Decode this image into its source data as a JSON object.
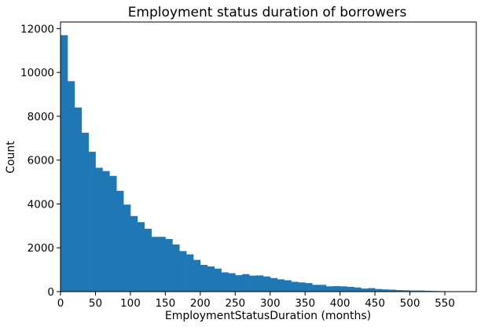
{
  "chart_data": {
    "type": "bar",
    "title": "Employment status duration of borrowers",
    "xlabel": "EmploymentStatusDuration (months)",
    "ylabel": "Count",
    "bar_color": "#1f77b4",
    "xlim": [
      0,
      595
    ],
    "ylim": [
      0,
      12300
    ],
    "xticks": [
      0,
      50,
      100,
      150,
      200,
      250,
      300,
      350,
      400,
      450,
      500,
      550
    ],
    "yticks": [
      0,
      2000,
      4000,
      6000,
      8000,
      10000,
      12000
    ],
    "bin_width": 10,
    "bin_starts": [
      0,
      10,
      20,
      30,
      40,
      50,
      60,
      70,
      80,
      90,
      100,
      110,
      120,
      130,
      140,
      150,
      160,
      170,
      180,
      190,
      200,
      210,
      220,
      230,
      240,
      250,
      260,
      270,
      280,
      290,
      300,
      310,
      320,
      330,
      340,
      350,
      360,
      370,
      380,
      390,
      400,
      410,
      420,
      430,
      440,
      450,
      460,
      470,
      480,
      490,
      500,
      510,
      520,
      530,
      540,
      550,
      560,
      570,
      580
    ],
    "values": [
      11700,
      9600,
      8400,
      7250,
      6380,
      5650,
      5500,
      5280,
      4600,
      3970,
      3450,
      3170,
      2870,
      2500,
      2500,
      2400,
      2150,
      1850,
      1700,
      1450,
      1220,
      1150,
      1050,
      880,
      840,
      750,
      800,
      730,
      740,
      690,
      620,
      560,
      520,
      450,
      420,
      390,
      310,
      310,
      240,
      250,
      240,
      220,
      190,
      140,
      160,
      120,
      100,
      90,
      70,
      60,
      50,
      50,
      40,
      30,
      25,
      20,
      15,
      10,
      5
    ]
  }
}
